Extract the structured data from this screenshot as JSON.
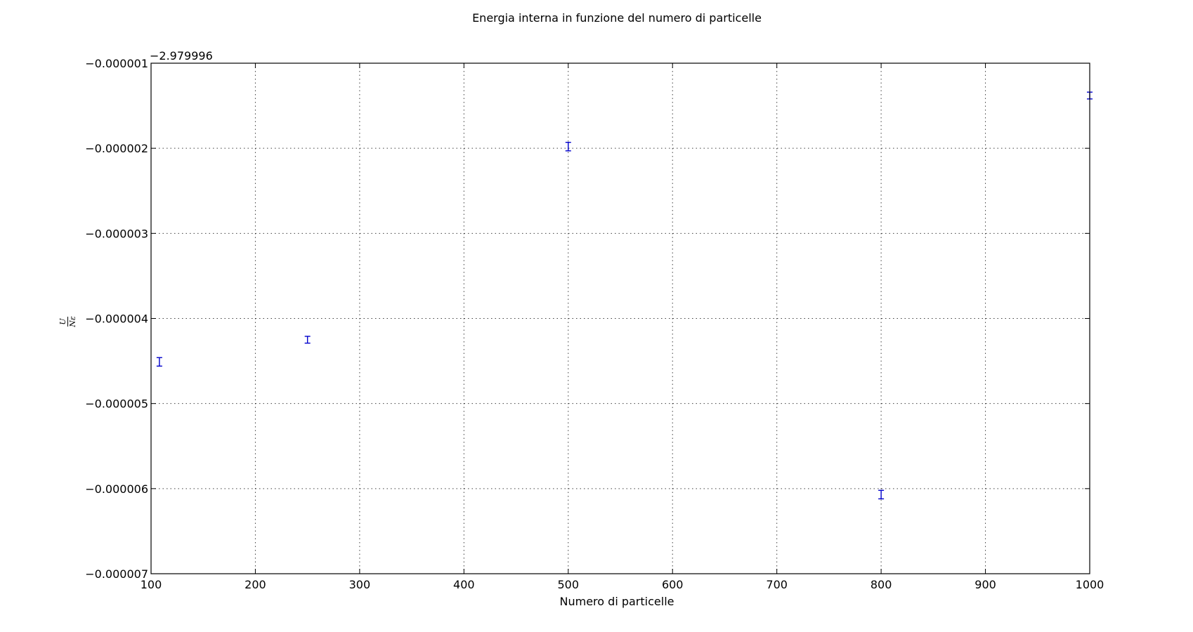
{
  "chart_data": {
    "type": "scatter",
    "title": "Energia interna in funzione del numero di particelle",
    "xlabel": "Numero di particelle",
    "ylabel": {
      "numerator": "U",
      "denominator": "Nε"
    },
    "offset_label": "−2.979996",
    "xlim": [
      100,
      1000
    ],
    "ylim": [
      -7e-06,
      -1e-06
    ],
    "xticks": [
      100,
      200,
      300,
      400,
      500,
      600,
      700,
      800,
      900,
      1000
    ],
    "xtick_labels": [
      "100",
      "200",
      "300",
      "400",
      "500",
      "600",
      "700",
      "800",
      "900",
      "1000"
    ],
    "yticks": [
      -1e-06,
      -2e-06,
      -3e-06,
      -4e-06,
      -5e-06,
      -6e-06,
      -7e-06
    ],
    "ytick_labels": [
      "−0.000001",
      "−0.000002",
      "−0.000003",
      "−0.000004",
      "−0.000005",
      "−0.000006",
      "−0.000007"
    ],
    "grid": true,
    "series": [
      {
        "x": [
          108,
          250,
          500,
          800,
          1000
        ],
        "y": [
          -4.51e-06,
          -4.25e-06,
          -1.98e-06,
          -6.07e-06,
          -1.38e-06
        ],
        "yerr": [
          5e-08,
          4e-08,
          5e-08,
          5e-08,
          4e-08
        ],
        "color": "#0000cc",
        "marker": "none",
        "errorbar_capped": true
      }
    ]
  }
}
